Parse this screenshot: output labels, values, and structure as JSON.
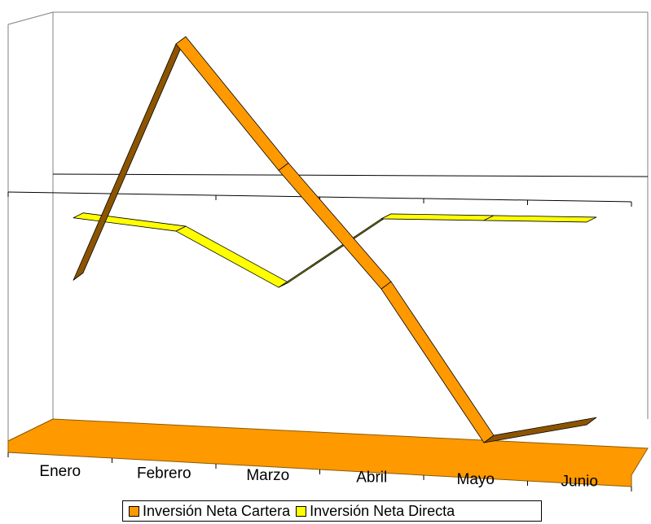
{
  "chart_data": {
    "type": "line",
    "title": "",
    "xlabel": "",
    "ylabel": "",
    "categories": [
      "Enero",
      "Febrero",
      "Marzo",
      "Abril",
      "Mayo",
      "Junio"
    ],
    "series": [
      {
        "name": "Inversión Neta Cartera",
        "values": [
          -1.0,
          5.1,
          1.9,
          -1.1,
          -5.0,
          -4.5
        ],
        "color": "#FF9900"
      },
      {
        "name": "Inversión Neta Directa",
        "values": [
          0.6,
          0.3,
          -1.1,
          0.7,
          0.7,
          0.7
        ],
        "color": "#FFFF00"
      }
    ],
    "ylim": [
      -5.5,
      6.5
    ],
    "grid": false,
    "legend_position": "bottom",
    "style": "3d-line",
    "floor_color": "#FF9900"
  }
}
